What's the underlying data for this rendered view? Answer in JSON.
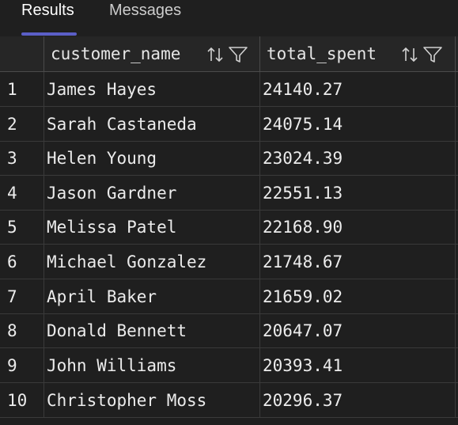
{
  "tabs": {
    "results_label": "Results",
    "messages_label": "Messages"
  },
  "columns": {
    "customer_name": "customer_name",
    "total_spent": "total_spent"
  },
  "rows": [
    {
      "num": "1",
      "customer_name": "James Hayes",
      "total_spent": "24140.27"
    },
    {
      "num": "2",
      "customer_name": "Sarah Castaneda",
      "total_spent": "24075.14"
    },
    {
      "num": "3",
      "customer_name": "Helen Young",
      "total_spent": "23024.39"
    },
    {
      "num": "4",
      "customer_name": "Jason Gardner",
      "total_spent": "22551.13"
    },
    {
      "num": "5",
      "customer_name": "Melissa Patel",
      "total_spent": "22168.90"
    },
    {
      "num": "6",
      "customer_name": "Michael Gonzalez",
      "total_spent": "21748.67"
    },
    {
      "num": "7",
      "customer_name": "April Baker",
      "total_spent": "21659.02"
    },
    {
      "num": "8",
      "customer_name": "Donald Bennett",
      "total_spent": "20647.07"
    },
    {
      "num": "9",
      "customer_name": "John Williams",
      "total_spent": "20393.41"
    },
    {
      "num": "10",
      "customer_name": "Christopher Moss",
      "total_spent": "20296.37"
    }
  ],
  "colors": {
    "accent": "#5b5fc7",
    "background": "#1f1f1f",
    "header_background": "#262626"
  },
  "icons": [
    "sort-icon",
    "filter-icon"
  ]
}
